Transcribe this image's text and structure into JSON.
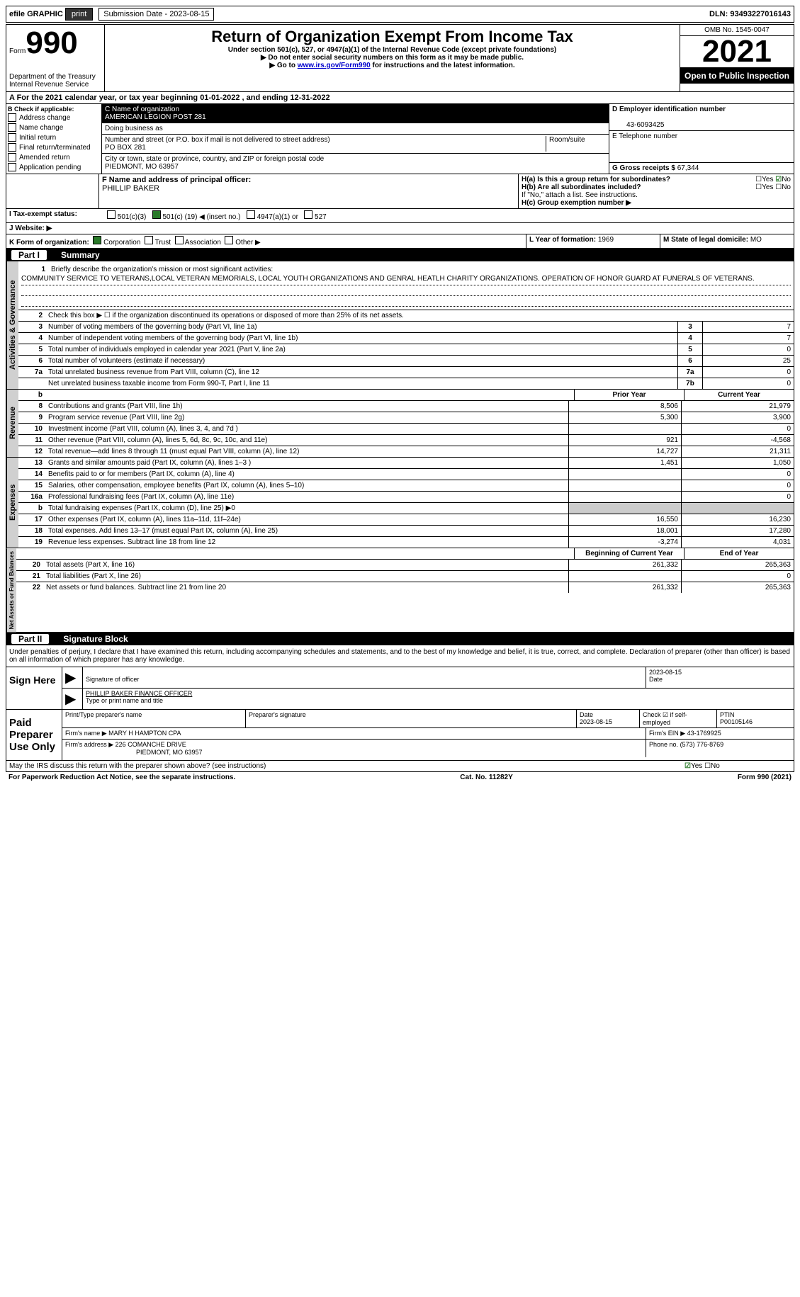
{
  "top": {
    "efile": "efile GRAPHIC",
    "print": "print",
    "subdate_label": "Submission Date - 2023-08-15",
    "dln_label": "DLN: 93493227016143"
  },
  "header": {
    "form_word": "Form",
    "form_num": "990",
    "title": "Return of Organization Exempt From Income Tax",
    "subtitle": "Under section 501(c), 527, or 4947(a)(1) of the Internal Revenue Code (except private foundations)",
    "note1": "▶ Do not enter social security numbers on this form as it may be made public.",
    "note2_pre": "▶ Go to ",
    "note2_link": "www.irs.gov/Form990",
    "note2_post": " for instructions and the latest information.",
    "dept": "Department of the Treasury",
    "irs": "Internal Revenue Service",
    "omb": "OMB No. 1545-0047",
    "year": "2021",
    "open": "Open to Public Inspection"
  },
  "a": "A For the 2021 calendar year, or tax year beginning 01-01-2022   , and ending 12-31-2022",
  "b": {
    "label": "B Check if applicable:",
    "opts": [
      "Address change",
      "Name change",
      "Initial return",
      "Final return/terminated",
      "Amended return",
      "Application pending"
    ]
  },
  "c": {
    "name_label": "C Name of organization",
    "name": "AMERICAN LEGION POST 281",
    "dba_label": "Doing business as",
    "addr_label": "Number and street (or P.O. box if mail is not delivered to street address)",
    "room": "Room/suite",
    "addr": "PO BOX 281",
    "city_label": "City or town, state or province, country, and ZIP or foreign postal code",
    "city": "PIEDMONT, MO  63957"
  },
  "d": {
    "ein_label": "D Employer identification number",
    "ein": "43-6093425",
    "phone_label": "E Telephone number",
    "gross_label": "G Gross receipts $",
    "gross": "67,344"
  },
  "f": {
    "label": "F  Name and address of principal officer:",
    "name": "PHILLIP BAKER"
  },
  "h": {
    "a": "H(a)  Is this a group return for subordinates?",
    "b": "H(b)  Are all subordinates included?",
    "note": "If \"No,\" attach a list. See instructions.",
    "c": "H(c)  Group exemption number ▶",
    "yes": "Yes",
    "no": "No"
  },
  "i": {
    "label": "I  Tax-exempt status:",
    "opt1": "501(c)(3)",
    "opt2a": "501(c) (",
    "opt2b": "19",
    "opt2c": ") ◀ (insert no.)",
    "opt3": "4947(a)(1) or",
    "opt4": "527"
  },
  "j": "J  Website: ▶",
  "k": {
    "label": "K Form of organization:",
    "corp": "Corporation",
    "trust": "Trust",
    "assoc": "Association",
    "other": "Other ▶"
  },
  "l": {
    "label": "L Year of formation:",
    "val": "1969"
  },
  "m": {
    "label": "M State of legal domicile:",
    "val": "MO"
  },
  "part1": {
    "num": "Part I",
    "title": "Summary"
  },
  "q1": {
    "label": "Briefly describe the organization's mission or most significant activities:",
    "text": "COMMUNITY SERVICE TO VETERANS,LOCAL VETERAN MEMORIALS, LOCAL YOUTH ORGANIZATIONS AND GENRAL HEATLH CHARITY ORGANIZATIONS. OPERATION OF HONOR GUARD AT FUNERALS OF VETERANS."
  },
  "q2": "Check this box ▶ ☐ if the organization discontinued its operations or disposed of more than 25% of its net assets.",
  "summary_gov": [
    {
      "n": "3",
      "d": "Number of voting members of the governing body (Part VI, line 1a)",
      "b": "3",
      "v": "7"
    },
    {
      "n": "4",
      "d": "Number of independent voting members of the governing body (Part VI, line 1b)",
      "b": "4",
      "v": "7"
    },
    {
      "n": "5",
      "d": "Total number of individuals employed in calendar year 2021 (Part V, line 2a)",
      "b": "5",
      "v": "0"
    },
    {
      "n": "6",
      "d": "Total number of volunteers (estimate if necessary)",
      "b": "6",
      "v": "25"
    },
    {
      "n": "7a",
      "d": "Total unrelated business revenue from Part VIII, column (C), line 12",
      "b": "7a",
      "v": "0"
    },
    {
      "n": "",
      "d": "Net unrelated business taxable income from Form 990-T, Part I, line 11",
      "b": "7b",
      "v": "0"
    }
  ],
  "cols": {
    "prior": "Prior Year",
    "current": "Current Year",
    "begin": "Beginning of Current Year",
    "end": "End of Year"
  },
  "vert": {
    "gov": "Activities & Governance",
    "rev": "Revenue",
    "exp": "Expenses",
    "net": "Net Assets or Fund Balances"
  },
  "revenue": [
    {
      "n": "8",
      "d": "Contributions and grants (Part VIII, line 1h)",
      "p": "8,506",
      "c": "21,979"
    },
    {
      "n": "9",
      "d": "Program service revenue (Part VIII, line 2g)",
      "p": "5,300",
      "c": "3,900"
    },
    {
      "n": "10",
      "d": "Investment income (Part VIII, column (A), lines 3, 4, and 7d )",
      "p": "",
      "c": "0"
    },
    {
      "n": "11",
      "d": "Other revenue (Part VIII, column (A), lines 5, 6d, 8c, 9c, 10c, and 11e)",
      "p": "921",
      "c": "-4,568"
    },
    {
      "n": "12",
      "d": "Total revenue—add lines 8 through 11 (must equal Part VIII, column (A), line 12)",
      "p": "14,727",
      "c": "21,311"
    }
  ],
  "expenses": [
    {
      "n": "13",
      "d": "Grants and similar amounts paid (Part IX, column (A), lines 1–3 )",
      "p": "1,451",
      "c": "1,050"
    },
    {
      "n": "14",
      "d": "Benefits paid to or for members (Part IX, column (A), line 4)",
      "p": "",
      "c": "0"
    },
    {
      "n": "15",
      "d": "Salaries, other compensation, employee benefits (Part IX, column (A), lines 5–10)",
      "p": "",
      "c": "0"
    },
    {
      "n": "16a",
      "d": "Professional fundraising fees (Part IX, column (A), line 11e)",
      "p": "",
      "c": "0"
    },
    {
      "n": "b",
      "d": "Total fundraising expenses (Part IX, column (D), line 25) ▶0",
      "p": "shade",
      "c": "shade"
    },
    {
      "n": "17",
      "d": "Other expenses (Part IX, column (A), lines 11a–11d, 11f–24e)",
      "p": "16,550",
      "c": "16,230"
    },
    {
      "n": "18",
      "d": "Total expenses. Add lines 13–17 (must equal Part IX, column (A), line 25)",
      "p": "18,001",
      "c": "17,280"
    },
    {
      "n": "19",
      "d": "Revenue less expenses. Subtract line 18 from line 12",
      "p": "-3,274",
      "c": "4,031"
    }
  ],
  "netassets": [
    {
      "n": "20",
      "d": "Total assets (Part X, line 16)",
      "p": "261,332",
      "c": "265,363"
    },
    {
      "n": "21",
      "d": "Total liabilities (Part X, line 26)",
      "p": "",
      "c": "0"
    },
    {
      "n": "22",
      "d": "Net assets or fund balances. Subtract line 21 from line 20",
      "p": "261,332",
      "c": "265,363"
    }
  ],
  "part2": {
    "num": "Part II",
    "title": "Signature Block"
  },
  "penalty": "Under penalties of perjury, I declare that I have examined this return, including accompanying schedules and statements, and to the best of my knowledge and belief, it is true, correct, and complete. Declaration of preparer (other than officer) is based on all information of which preparer has any knowledge.",
  "sign": {
    "here": "Sign Here",
    "sigoff": "Signature of officer",
    "date": "Date",
    "dateval": "2023-08-15",
    "name": "PHILLIP BAKER  FINANCE OFFICER",
    "typename": "Type or print name and title"
  },
  "prep": {
    "label": "Paid Preparer Use Only",
    "printname": "Print/Type preparer's name",
    "sig": "Preparer's signature",
    "pdate": "Date",
    "pdateval": "2023-08-15",
    "check": "Check ☑ if self-employed",
    "ptin": "PTIN",
    "ptinval": "P00105146",
    "firmname": "Firm's name    ▶",
    "firmnameval": "MARY H HAMPTON CPA",
    "firmein": "Firm's EIN ▶",
    "firmeinval": "43-1769925",
    "firmaddr": "Firm's address ▶",
    "firmaddrval": "226 COMANCHE DRIVE",
    "firmcity": "PIEDMONT, MO  63957",
    "phone": "Phone no.",
    "phoneval": "(573) 776-8769"
  },
  "discuss": "May the IRS discuss this return with the preparer shown above? (see instructions)",
  "footer": {
    "pra": "For Paperwork Reduction Act Notice, see the separate instructions.",
    "cat": "Cat. No. 11282Y",
    "form": "Form 990 (2021)"
  }
}
